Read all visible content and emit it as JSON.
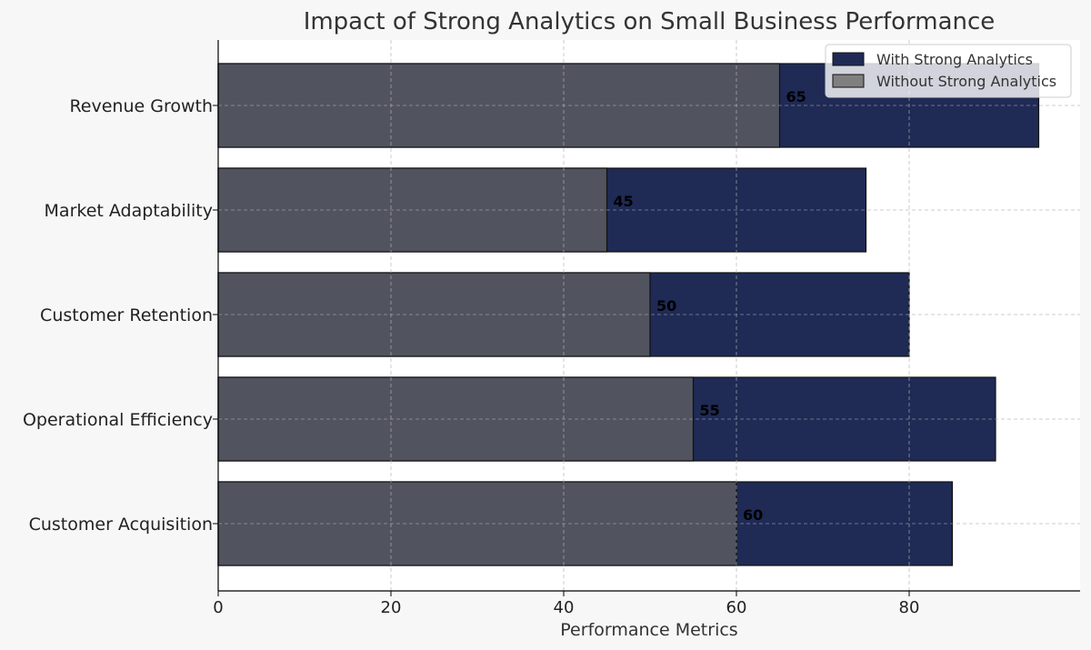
{
  "chart_data": {
    "type": "bar",
    "orientation": "horizontal",
    "stacking": "overlay",
    "title": "Impact of Strong Analytics on Small Business Performance",
    "xlabel": "Performance Metrics",
    "ylabel": "",
    "categories": [
      "Revenue Growth",
      "Market Adaptability",
      "Customer Retention",
      "Operational Efficiency",
      "Customer Acquisition"
    ],
    "series": [
      {
        "name": "With Strong Analytics",
        "values": [
          95,
          75,
          80,
          90,
          85
        ],
        "color": "#1f2a55"
      },
      {
        "name": "Without Strong Analytics",
        "values": [
          65,
          45,
          50,
          55,
          60
        ],
        "color": "#51535f"
      }
    ],
    "data_labels": [
      "65",
      "45",
      "50",
      "55",
      "60"
    ],
    "xlim": [
      0,
      100
    ],
    "xticks": [
      0,
      20,
      40,
      60,
      80
    ],
    "xtick_labels": [
      "0",
      "20",
      "40",
      "60",
      "80"
    ],
    "grid": true,
    "legend_position": "top-right",
    "legend_swatch_colors": [
      "#1f2a55",
      "#808080"
    ]
  }
}
